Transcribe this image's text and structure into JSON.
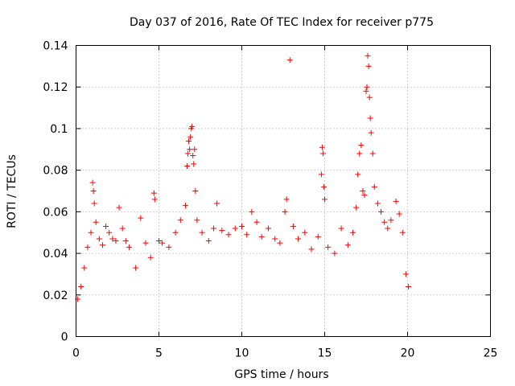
{
  "chart_data": {
    "type": "scatter",
    "title": "Day 037 of 2016, Rate Of TEC Index for receiver p775",
    "xlabel": "GPS time / hours",
    "ylabel": "ROTI / TECUs",
    "xlim": [
      0,
      25
    ],
    "ylim": [
      0,
      0.14
    ],
    "xticks": [
      0,
      5,
      10,
      15,
      20,
      25
    ],
    "xtick_labels": [
      "0",
      "5",
      "10",
      "15",
      "20",
      "25"
    ],
    "yticks": [
      0,
      0.02,
      0.04,
      0.06,
      0.08,
      0.1,
      0.12,
      0.14
    ],
    "ytick_labels": [
      "0",
      "0.02",
      "0.04",
      "0.06",
      "0.08",
      "0.1",
      "0.12",
      "0.14"
    ],
    "grid": true,
    "marker": "+",
    "color": "#ff0000",
    "data_range_hours": [
      0,
      20.1
    ],
    "series": [
      {
        "name": "p775",
        "points": [
          [
            0.1,
            0.018
          ],
          [
            0.3,
            0.024
          ],
          [
            0.5,
            0.033
          ],
          [
            0.7,
            0.043
          ],
          [
            0.9,
            0.05
          ],
          [
            1.0,
            0.074
          ],
          [
            1.05,
            0.07
          ],
          [
            1.1,
            0.064
          ],
          [
            1.2,
            0.055
          ],
          [
            1.4,
            0.047
          ],
          [
            1.6,
            0.044
          ],
          [
            1.8,
            0.053
          ],
          [
            2.0,
            0.05
          ],
          [
            2.2,
            0.047
          ],
          [
            2.4,
            0.046
          ],
          [
            2.6,
            0.062
          ],
          [
            2.8,
            0.052
          ],
          [
            3.0,
            0.046
          ],
          [
            3.2,
            0.043
          ],
          [
            3.6,
            0.033
          ],
          [
            3.9,
            0.057
          ],
          [
            4.2,
            0.045
          ],
          [
            4.5,
            0.038
          ],
          [
            4.7,
            0.069
          ],
          [
            4.75,
            0.066
          ],
          [
            5.0,
            0.046
          ],
          [
            5.2,
            0.045
          ],
          [
            5.6,
            0.043
          ],
          [
            6.0,
            0.05
          ],
          [
            6.3,
            0.056
          ],
          [
            6.6,
            0.063
          ],
          [
            6.7,
            0.082
          ],
          [
            6.75,
            0.088
          ],
          [
            6.8,
            0.094
          ],
          [
            6.85,
            0.09
          ],
          [
            6.9,
            0.096
          ],
          [
            6.95,
            0.1
          ],
          [
            7.0,
            0.101
          ],
          [
            7.05,
            0.087
          ],
          [
            7.1,
            0.083
          ],
          [
            7.15,
            0.09
          ],
          [
            7.2,
            0.07
          ],
          [
            7.3,
            0.056
          ],
          [
            7.6,
            0.05
          ],
          [
            8.0,
            0.046
          ],
          [
            8.3,
            0.052
          ],
          [
            8.5,
            0.064
          ],
          [
            8.8,
            0.051
          ],
          [
            9.2,
            0.049
          ],
          [
            9.6,
            0.052
          ],
          [
            10.0,
            0.053
          ],
          [
            10.3,
            0.049
          ],
          [
            10.6,
            0.06
          ],
          [
            10.9,
            0.055
          ],
          [
            11.2,
            0.048
          ],
          [
            11.6,
            0.052
          ],
          [
            12.0,
            0.047
          ],
          [
            12.3,
            0.045
          ],
          [
            12.6,
            0.06
          ],
          [
            12.7,
            0.066
          ],
          [
            12.9,
            0.133
          ],
          [
            13.1,
            0.053
          ],
          [
            13.4,
            0.047
          ],
          [
            13.8,
            0.05
          ],
          [
            14.2,
            0.042
          ],
          [
            14.6,
            0.048
          ],
          [
            14.8,
            0.078
          ],
          [
            14.85,
            0.091
          ],
          [
            14.9,
            0.088
          ],
          [
            14.95,
            0.072
          ],
          [
            15.0,
            0.066
          ],
          [
            15.2,
            0.043
          ],
          [
            15.6,
            0.04
          ],
          [
            16.0,
            0.052
          ],
          [
            16.4,
            0.044
          ],
          [
            16.7,
            0.05
          ],
          [
            16.9,
            0.062
          ],
          [
            17.0,
            0.078
          ],
          [
            17.1,
            0.088
          ],
          [
            17.2,
            0.092
          ],
          [
            17.3,
            0.07
          ],
          [
            17.4,
            0.068
          ],
          [
            17.5,
            0.118
          ],
          [
            17.55,
            0.12
          ],
          [
            17.6,
            0.135
          ],
          [
            17.65,
            0.13
          ],
          [
            17.7,
            0.115
          ],
          [
            17.75,
            0.105
          ],
          [
            17.8,
            0.098
          ],
          [
            17.9,
            0.088
          ],
          [
            18.0,
            0.072
          ],
          [
            18.2,
            0.064
          ],
          [
            18.4,
            0.06
          ],
          [
            18.6,
            0.055
          ],
          [
            18.8,
            0.052
          ],
          [
            19.0,
            0.056
          ],
          [
            19.3,
            0.065
          ],
          [
            19.5,
            0.059
          ],
          [
            19.7,
            0.05
          ],
          [
            19.9,
            0.03
          ],
          [
            20.05,
            0.024
          ]
        ]
      }
    ]
  }
}
